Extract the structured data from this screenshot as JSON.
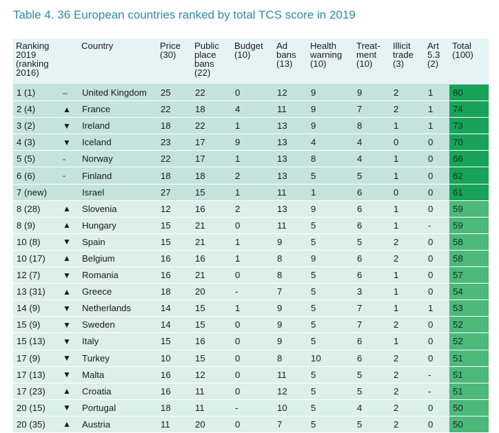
{
  "title": "Table 4. 36 European countries ranked by total TCS score in 2019",
  "headers": {
    "ranking": [
      "Ranking",
      "2019",
      "(ranking",
      "2016)"
    ],
    "country": [
      "Country"
    ],
    "price": [
      "Price",
      "(30)"
    ],
    "public": [
      "Public",
      "place",
      "bans",
      "(22)"
    ],
    "budget": [
      "Budget",
      "(10)"
    ],
    "ad": [
      "Ad",
      "bans",
      "(13)"
    ],
    "health": [
      "Health",
      "warning",
      "(10)"
    ],
    "treatment": [
      "Treat-",
      "ment",
      "(10)"
    ],
    "illicit": [
      "Illicit",
      "trade",
      "(3)"
    ],
    "art": [
      "Art",
      "5.3",
      "(2)"
    ],
    "total": [
      "Total",
      "(100)"
    ]
  },
  "rows": [
    {
      "rank": "1 (1)",
      "trend": "–",
      "country": "United Kingdom",
      "price": "25",
      "public": "22",
      "budget": "0",
      "ad": "12",
      "health": "9",
      "treatment": "9",
      "illicit": "2",
      "art": "1",
      "total": "80"
    },
    {
      "rank": "2 (4)",
      "trend": "▲",
      "country": "France",
      "price": "22",
      "public": "18",
      "budget": "4",
      "ad": "11",
      "health": "9",
      "treatment": "7",
      "illicit": "2",
      "art": "1",
      "total": "74"
    },
    {
      "rank": "3 (2)",
      "trend": "▼",
      "country": "Ireland",
      "price": "18",
      "public": "22",
      "budget": "1",
      "ad": "13",
      "health": "9",
      "treatment": "8",
      "illicit": "1",
      "art": "1",
      "total": "73"
    },
    {
      "rank": "4 (3)",
      "trend": "▼",
      "country": "Iceland",
      "price": "23",
      "public": "17",
      "budget": "9",
      "ad": "13",
      "health": "4",
      "treatment": "4",
      "illicit": "0",
      "art": "0",
      "total": "70"
    },
    {
      "rank": "5 (5)",
      "trend": "-",
      "country": "Norway",
      "price": "22",
      "public": "17",
      "budget": "1",
      "ad": "13",
      "health": "8",
      "treatment": "4",
      "illicit": "1",
      "art": "0",
      "total": "66"
    },
    {
      "rank": "6 (6)",
      "trend": "-",
      "country": "Finland",
      "price": "18",
      "public": "18",
      "budget": "2",
      "ad": "13",
      "health": "5",
      "treatment": "5",
      "illicit": "1",
      "art": "0",
      "total": "62"
    },
    {
      "rank": "7 (new)",
      "trend": "",
      "country": "Israel",
      "price": "27",
      "public": "15",
      "budget": "1",
      "ad": "11",
      "health": "1",
      "treatment": "6",
      "illicit": "0",
      "art": "0",
      "total": "61"
    },
    {
      "rank": "8 (28)",
      "trend": "▲",
      "country": "Slovenia",
      "price": "12",
      "public": "16",
      "budget": "2",
      "ad": "13",
      "health": "9",
      "treatment": "6",
      "illicit": "1",
      "art": "0",
      "total": "59"
    },
    {
      "rank": "8 (9)",
      "trend": "▲",
      "country": "Hungary",
      "price": "15",
      "public": "21",
      "budget": "0",
      "ad": "11",
      "health": "5",
      "treatment": "6",
      "illicit": "1",
      "art": "-",
      "total": "59"
    },
    {
      "rank": "10 (8)",
      "trend": "▼",
      "country": "Spain",
      "price": "15",
      "public": "21",
      "budget": "1",
      "ad": "9",
      "health": "5",
      "treatment": "5",
      "illicit": "2",
      "art": "0",
      "total": "58"
    },
    {
      "rank": "10 (17)",
      "trend": "▲",
      "country": "Belgium",
      "price": "16",
      "public": "16",
      "budget": "1",
      "ad": "8",
      "health": "9",
      "treatment": "6",
      "illicit": "2",
      "art": "0",
      "total": "58"
    },
    {
      "rank": "12 (7)",
      "trend": "▼",
      "country": "Romania",
      "price": "16",
      "public": "21",
      "budget": "0",
      "ad": "8",
      "health": "5",
      "treatment": "6",
      "illicit": "1",
      "art": "0",
      "total": "57"
    },
    {
      "rank": "13 (31)",
      "trend": "▲",
      "country": "Greece",
      "price": "18",
      "public": "20",
      "budget": "-",
      "ad": "7",
      "health": "5",
      "treatment": "3",
      "illicit": "1",
      "art": "0",
      "total": "54"
    },
    {
      "rank": "14 (9)",
      "trend": "▼",
      "country": "Netherlands",
      "price": "14",
      "public": "15",
      "budget": "1",
      "ad": "9",
      "health": "5",
      "treatment": "7",
      "illicit": "1",
      "art": "1",
      "total": "53"
    },
    {
      "rank": "15 (9)",
      "trend": "▼",
      "country": "Sweden",
      "price": "14",
      "public": "15",
      "budget": "0",
      "ad": "9",
      "health": "5",
      "treatment": "7",
      "illicit": "2",
      "art": "0",
      "total": "52"
    },
    {
      "rank": "15 (13)",
      "trend": "▼",
      "country": "Italy",
      "price": "15",
      "public": "16",
      "budget": "0",
      "ad": "9",
      "health": "5",
      "treatment": "6",
      "illicit": "1",
      "art": "0",
      "total": "52"
    },
    {
      "rank": "17 (9)",
      "trend": "▼",
      "country": "Turkey",
      "price": "10",
      "public": "15",
      "budget": "0",
      "ad": "8",
      "health": "10",
      "treatment": "6",
      "illicit": "2",
      "art": "0",
      "total": "51"
    },
    {
      "rank": "17 (13)",
      "trend": "▼",
      "country": "Malta",
      "price": "16",
      "public": "12",
      "budget": "0",
      "ad": "11",
      "health": "5",
      "treatment": "5",
      "illicit": "2",
      "art": "-",
      "total": "51"
    },
    {
      "rank": "17 (23)",
      "trend": "▲",
      "country": "Croatia",
      "price": "16",
      "public": "11",
      "budget": "0",
      "ad": "12",
      "health": "5",
      "treatment": "5",
      "illicit": "2",
      "art": "-",
      "total": "51"
    },
    {
      "rank": "20 (15)",
      "trend": "▼",
      "country": "Portugal",
      "price": "18",
      "public": "11",
      "budget": "-",
      "ad": "10",
      "health": "5",
      "treatment": "4",
      "illicit": "2",
      "art": "0",
      "total": "50"
    },
    {
      "rank": "20 (35)",
      "trend": "▲",
      "country": "Austria",
      "price": "11",
      "public": "20",
      "budget": "0",
      "ad": "7",
      "health": "5",
      "treatment": "5",
      "illicit": "2",
      "art": "0",
      "total": "50"
    }
  ],
  "colors": {
    "title": "#2e8aa6",
    "header_bg": "#e6f3f6",
    "top_rows_bg": "#c5e2dd",
    "rows_bg": "#dcefe8",
    "total_top": "#18a35a",
    "total_rest": "#4cb87a"
  }
}
